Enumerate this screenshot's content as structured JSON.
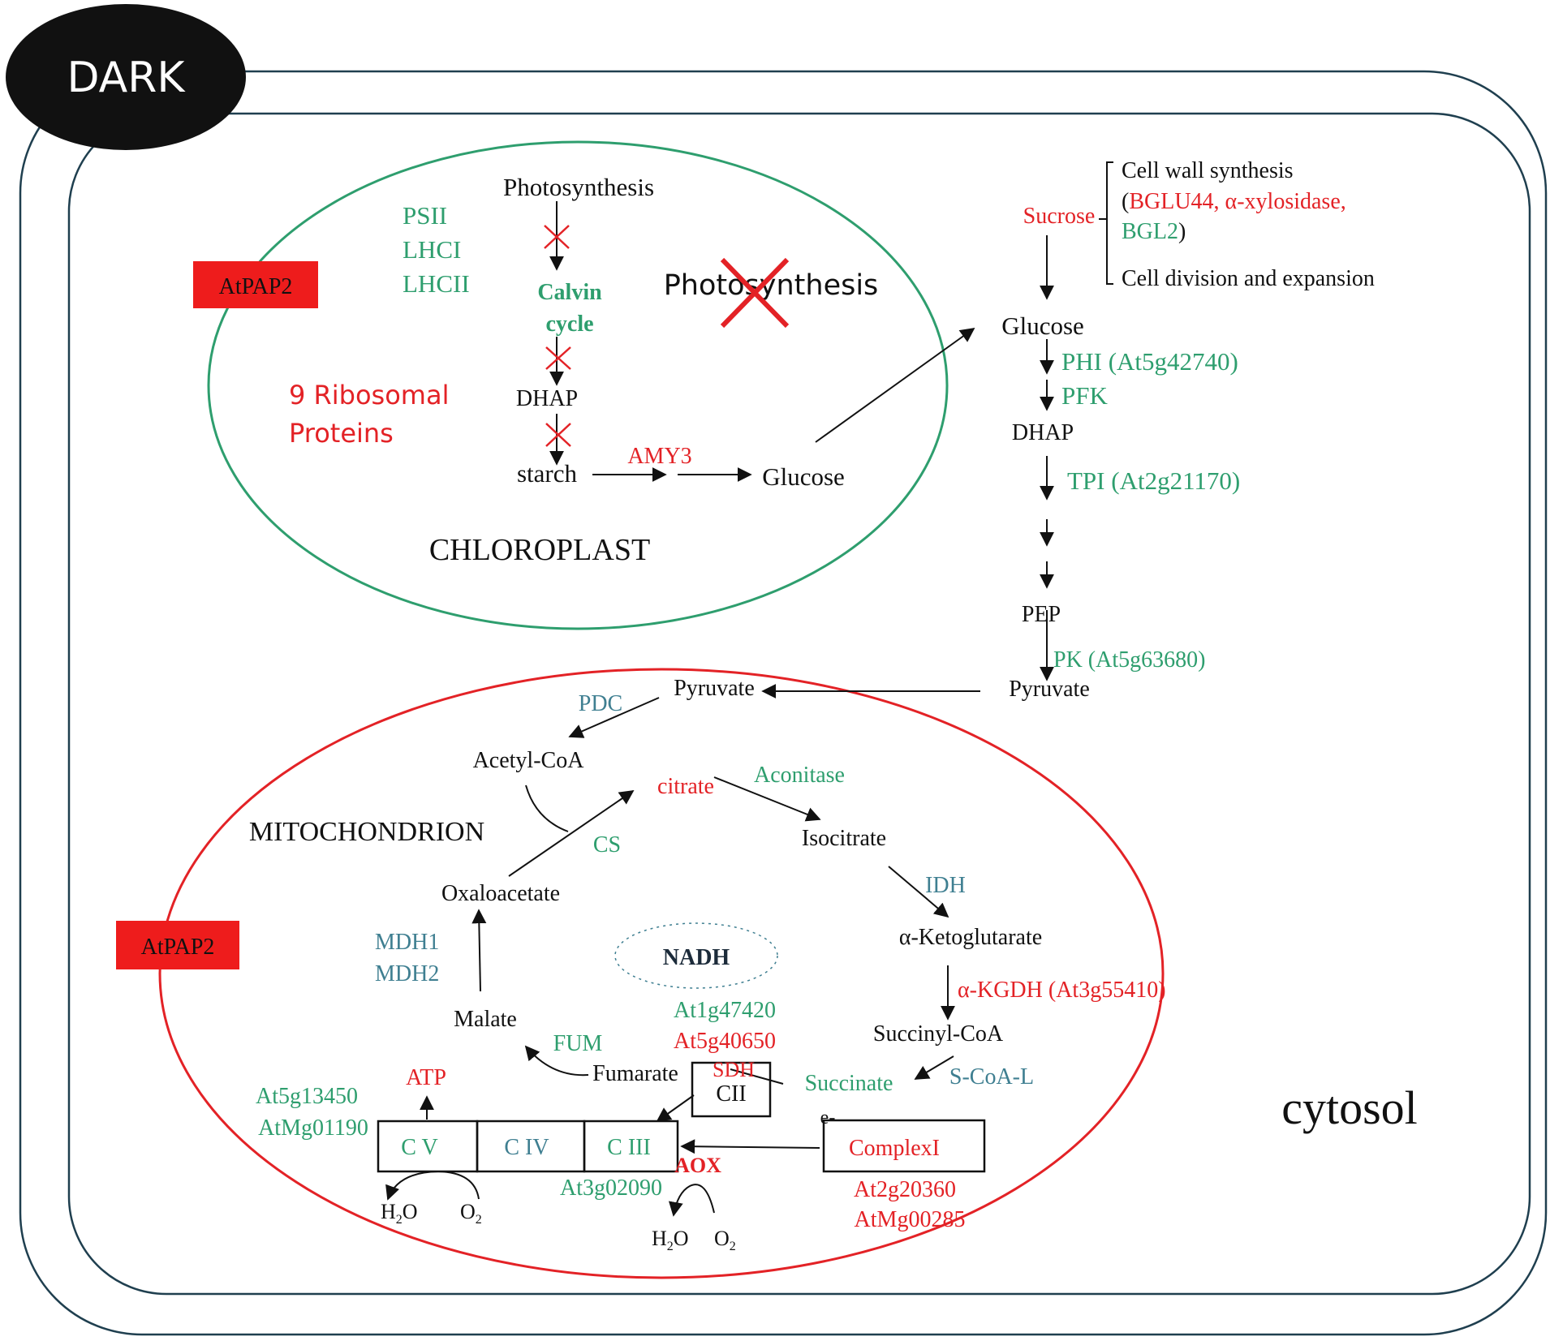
{
  "header": {
    "badge": "DARK"
  },
  "compartments": {
    "chloroplast": "CHLOROPLAST",
    "mitochondrion": "MITOCHONDRION",
    "cytosol": "cytosol"
  },
  "protein_tags": {
    "left_top": "AtPAP2",
    "left_bottom": "AtPAP2"
  },
  "chloroplast": {
    "photosynthesis_top": "Photosynthesis",
    "psii": "PSII",
    "lhci": "LHCI",
    "lhcii": "LHCII",
    "calvin_1": "Calvin",
    "calvin_2": "cycle",
    "photosynthesis_crossed": "Photosynthesis",
    "ribosomal_1": "9 Ribosomal",
    "ribosomal_2": "Proteins",
    "dhap": "DHAP",
    "starch": "starch",
    "amy3": "AMY3",
    "glucose": "Glucose"
  },
  "cytosol_pathway": {
    "sucrose": "Sucrose",
    "cell_wall": "Cell wall synthesis",
    "cell_wall_genes_open": "(",
    "cell_wall_genes_1": "BGLU44, α-xylosidase,",
    "cell_wall_genes_2": "BGL2",
    "cell_wall_genes_close": ")",
    "cell_division": "Cell division and expansion",
    "glucose": "Glucose",
    "phi": "PHI (At5g42740)",
    "pfk": "PFK",
    "dhap": "DHAP",
    "tpi": "TPI (At2g21170)",
    "pep": "PEP",
    "pk": "PK (At5g63680)",
    "pyruvate": "Pyruvate"
  },
  "mito": {
    "pyruvate": "Pyruvate",
    "pdc": "PDC",
    "acetyl_coa": "Acetyl-CoA",
    "citrate": "citrate",
    "aconitase": "Aconitase",
    "cs": "CS",
    "isocitrate": "Isocitrate",
    "idh": "IDH",
    "oxaloacetate": "Oxaloacetate",
    "akg": "α-Ketoglutarate",
    "akgdh": "α-KGDH (At3g55410)",
    "mdh1": "MDH1",
    "mdh2": "MDH2",
    "nadh": "NADH",
    "nadh_gene_1": "At1g47420",
    "nadh_gene_2": "At5g40650",
    "malate": "Malate",
    "fum": "FUM",
    "fumarate": "Fumarate",
    "sdh": "SDH",
    "cii": "CII",
    "succinyl_coa": "Succinyl-CoA",
    "succinate": "Succinate",
    "scoal": "S-CoA-L",
    "atp": "ATP",
    "cv_gene_1": "At5g13450",
    "cv_gene_2": "AtMg01190",
    "cv": "C V",
    "civ": "C  IV",
    "ciii": "C III",
    "aox": "AOX",
    "ciii_gene": "At3g02090",
    "e_minus": "e-",
    "complex1": "ComplexI",
    "c1_gene_1": "At2g20360",
    "c1_gene_2": "AtMg00285",
    "h2o_1": "H",
    "sub2_1": "2",
    "o_1": "O",
    "o2_1": "O",
    "sub2_2": "2",
    "h2o_2": "H",
    "sub2_3": "2",
    "o_2": "O",
    "o2_2": "O",
    "sub2_4": "2"
  },
  "colors": {
    "green": "#2e9e6e",
    "red": "#e32226",
    "teal": "#3f7f91",
    "chloroplast_outline": "#2e9e6e",
    "mito_outline": "#e32226",
    "cell_outline": "#1f3f4f"
  }
}
